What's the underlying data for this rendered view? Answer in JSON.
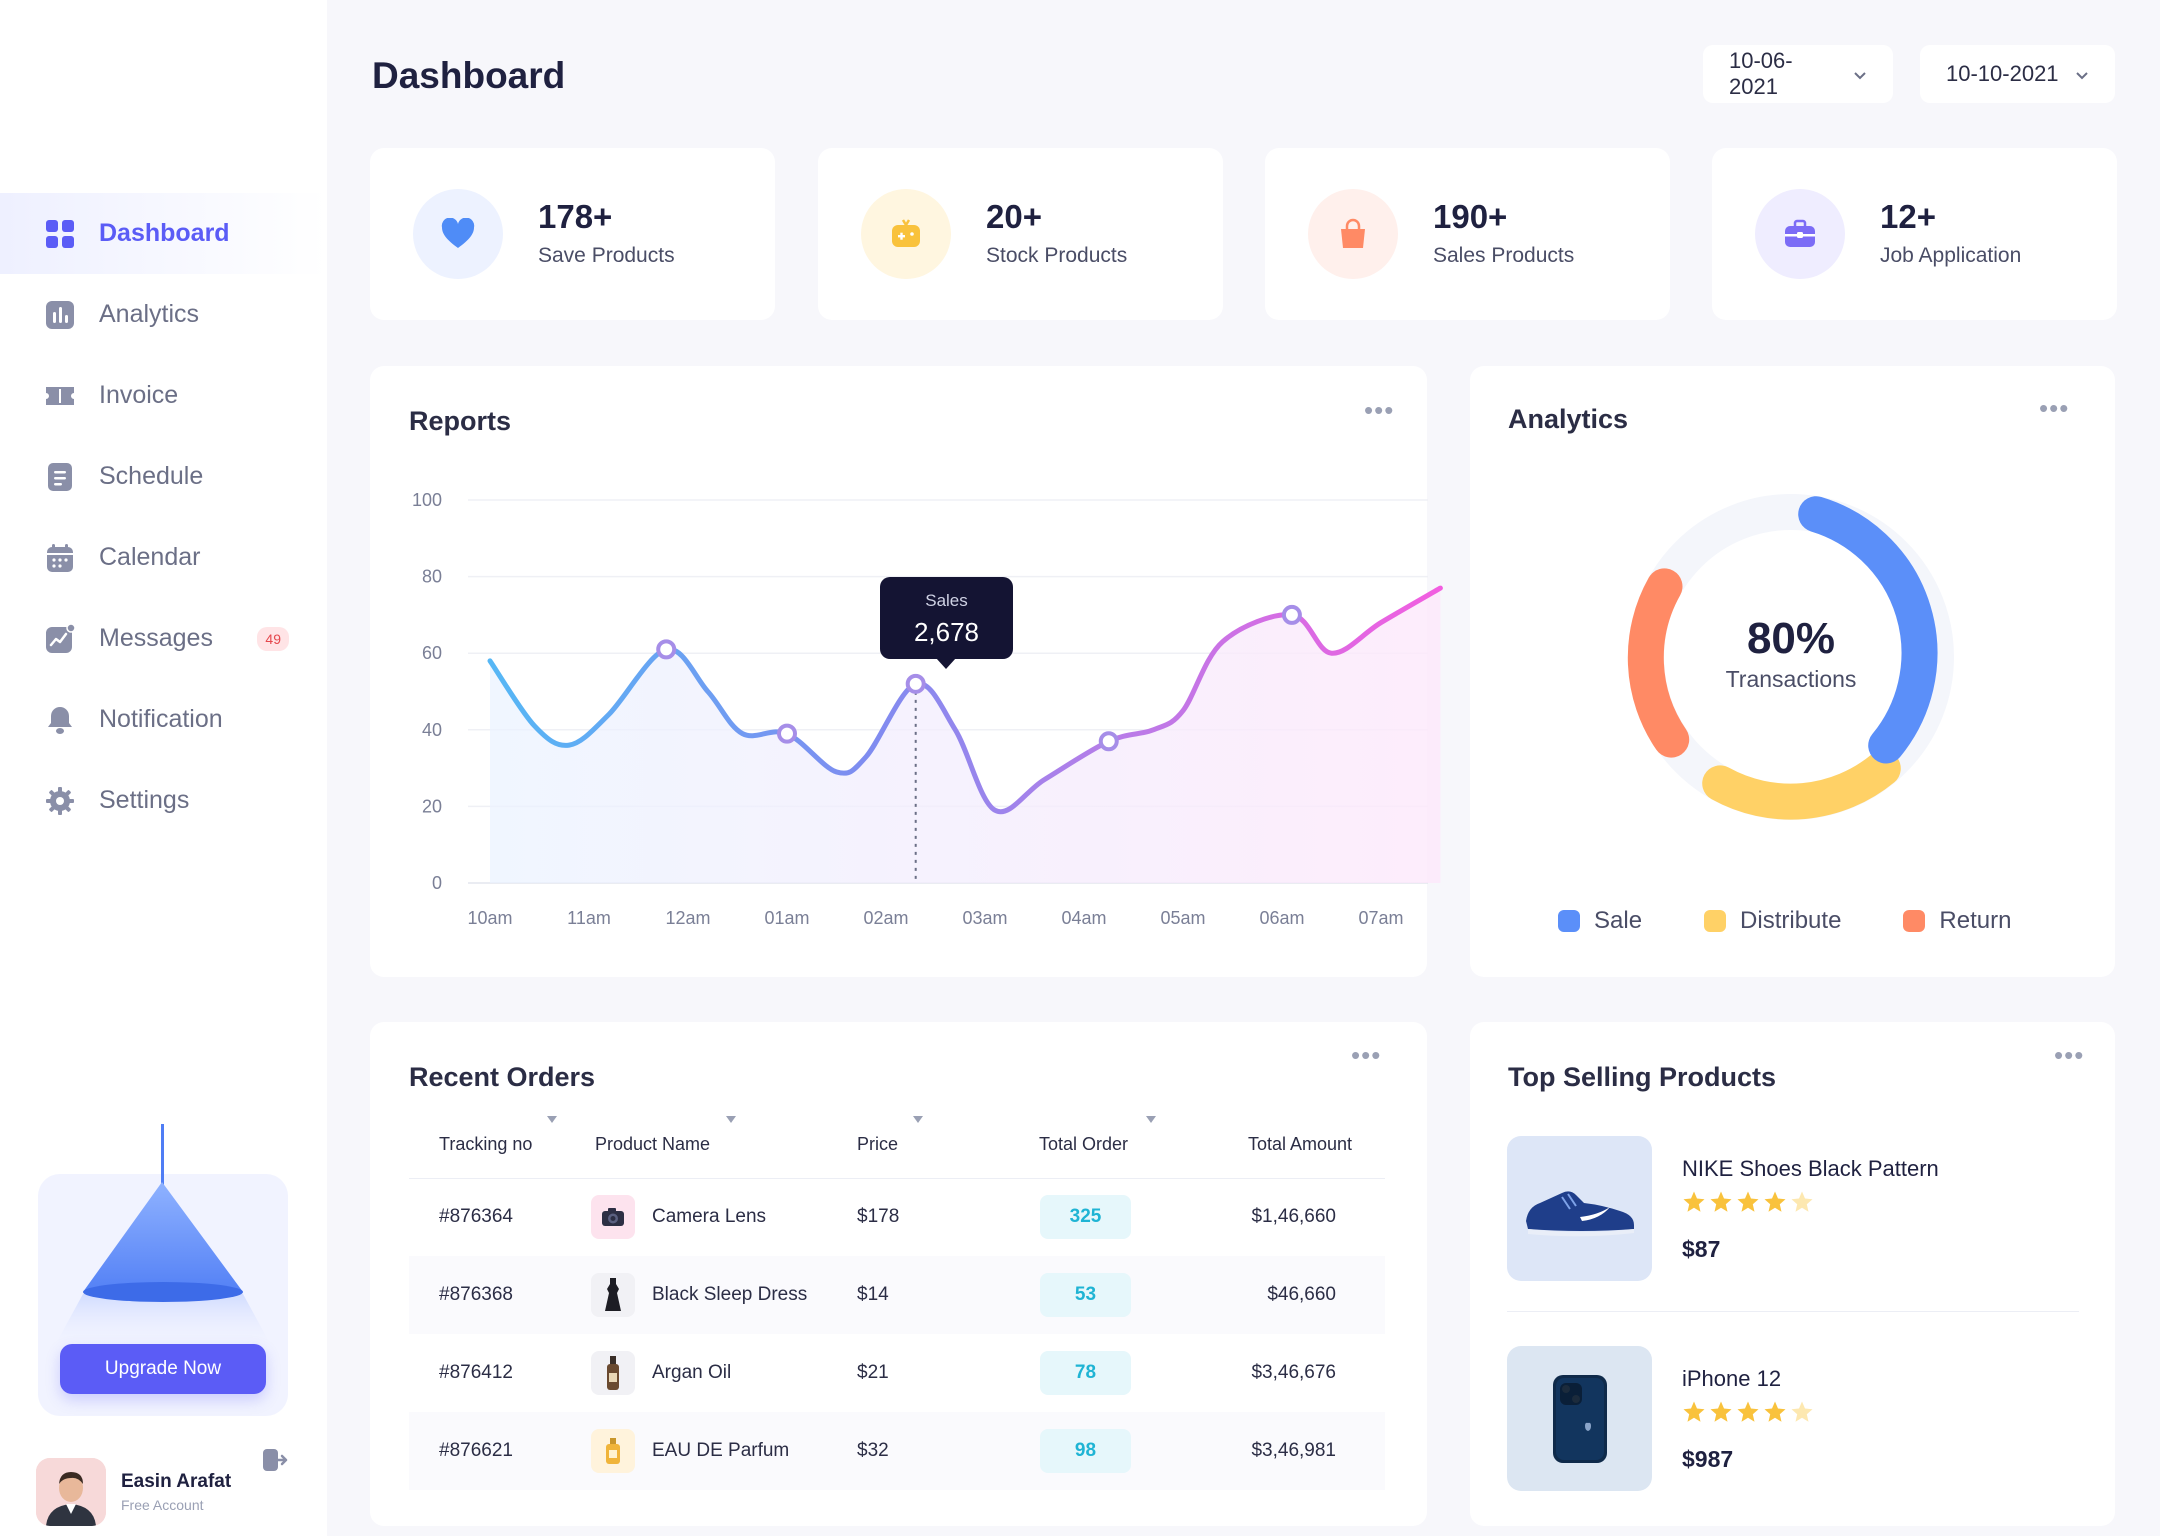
{
  "sidebar": {
    "items": [
      {
        "label": "Dashboard",
        "icon": "grid-icon",
        "active": true
      },
      {
        "label": "Analytics",
        "icon": "bar-chart-icon",
        "active": false
      },
      {
        "label": "Invoice",
        "icon": "ticket-icon",
        "active": false
      },
      {
        "label": "Schedule",
        "icon": "document-icon",
        "active": false
      },
      {
        "label": "Calendar",
        "icon": "calendar-icon",
        "active": false
      },
      {
        "label": "Messages",
        "icon": "trend-icon",
        "active": false,
        "badge": "49"
      },
      {
        "label": "Notification",
        "icon": "bell-icon",
        "active": false
      },
      {
        "label": "Settings",
        "icon": "gear-icon",
        "active": false
      }
    ],
    "upgrade_label": "Upgrade Now",
    "user": {
      "name": "Easin Arafat",
      "role": "Free Account"
    }
  },
  "header": {
    "title": "Dashboard",
    "date_from": "10-06-2021",
    "date_to": "10-10-2021"
  },
  "stats": [
    {
      "value": "178+",
      "label": "Save Products",
      "icon": "heart-icon",
      "color": "#4f8cf7"
    },
    {
      "value": "20+",
      "label": "Stock Products",
      "icon": "game-icon",
      "color": "#f9c23c"
    },
    {
      "value": "190+",
      "label": "Sales Products",
      "icon": "bag-icon",
      "color": "#ff8a65"
    },
    {
      "value": "12+",
      "label": "Job Application",
      "icon": "briefcase-icon",
      "color": "#7c6cf6"
    }
  ],
  "reports": {
    "title": "Reports",
    "more": "•••",
    "tooltip": {
      "label": "Sales",
      "value": "2,678"
    }
  },
  "chart_data": {
    "type": "line",
    "title": "Reports",
    "x": [
      "10am",
      "11am",
      "12am",
      "01am",
      "02am",
      "03am",
      "04am",
      "05am",
      "06am",
      "07am"
    ],
    "y_ticks": [
      0,
      20,
      40,
      60,
      80,
      100
    ],
    "ylim": [
      0,
      100
    ],
    "grid": true,
    "series": [
      {
        "points": [
          [
            0,
            58
          ],
          [
            0.45,
            41
          ],
          [
            0.8,
            36
          ],
          [
            1.2,
            44
          ],
          [
            1.78,
            61
          ],
          [
            2.2,
            50
          ],
          [
            2.55,
            39
          ],
          [
            3.0,
            39
          ],
          [
            3.5,
            29
          ],
          [
            3.8,
            33
          ],
          [
            4.3,
            52
          ],
          [
            4.7,
            40
          ],
          [
            5.1,
            19
          ],
          [
            5.6,
            27
          ],
          [
            6.25,
            37
          ],
          [
            6.7,
            40
          ],
          [
            7.0,
            45
          ],
          [
            7.4,
            63
          ],
          [
            8.1,
            70
          ],
          [
            8.5,
            60
          ],
          [
            9.0,
            68
          ],
          [
            9.6,
            77
          ]
        ],
        "markers": [
          [
            1.78,
            61
          ],
          [
            3.0,
            39
          ],
          [
            4.3,
            52
          ],
          [
            6.25,
            37
          ],
          [
            8.1,
            70
          ]
        ],
        "highlight": [
          4.3,
          52
        ]
      }
    ],
    "tooltip": {
      "label": "Sales",
      "value": "2,678"
    }
  },
  "analytics": {
    "title": "Analytics",
    "more": "•••",
    "center_value": "80%",
    "center_label": "Transactions",
    "segments": [
      {
        "name": "Sale",
        "color": "#5b8ff9",
        "percent": 40
      },
      {
        "name": "Distribute",
        "color": "#ffd166",
        "percent": 20
      },
      {
        "name": "Return",
        "color": "#ff8a65",
        "percent": 20
      }
    ]
  },
  "orders": {
    "title": "Recent Orders",
    "more": "•••",
    "columns": [
      "Tracking no",
      "Product Name",
      "Price",
      "Total Order",
      "Total Amount"
    ],
    "rows": [
      {
        "tracking": "#876364",
        "product": "Camera Lens",
        "price": "$178",
        "qty": "325",
        "amount": "$1,46,660",
        "thumb": "camera-icon"
      },
      {
        "tracking": "#876368",
        "product": "Black Sleep Dress",
        "price": "$14",
        "qty": "53",
        "amount": "$46,660",
        "thumb": "dress-icon"
      },
      {
        "tracking": "#876412",
        "product": "Argan Oil",
        "price": "$21",
        "qty": "78",
        "amount": "$3,46,676",
        "thumb": "bottle-icon"
      },
      {
        "tracking": "#876621",
        "product": "EAU DE Parfum",
        "price": "$32",
        "qty": "98",
        "amount": "$3,46,981",
        "thumb": "perfume-icon"
      }
    ]
  },
  "top_selling": {
    "title": "Top Selling Products",
    "more": "•••",
    "products": [
      {
        "name": "NIKE Shoes Black Pattern",
        "price": "$87",
        "rating": 4,
        "image": "shoe-icon"
      },
      {
        "name": "iPhone 12",
        "price": "$987",
        "rating": 4,
        "image": "phone-icon"
      }
    ]
  }
}
